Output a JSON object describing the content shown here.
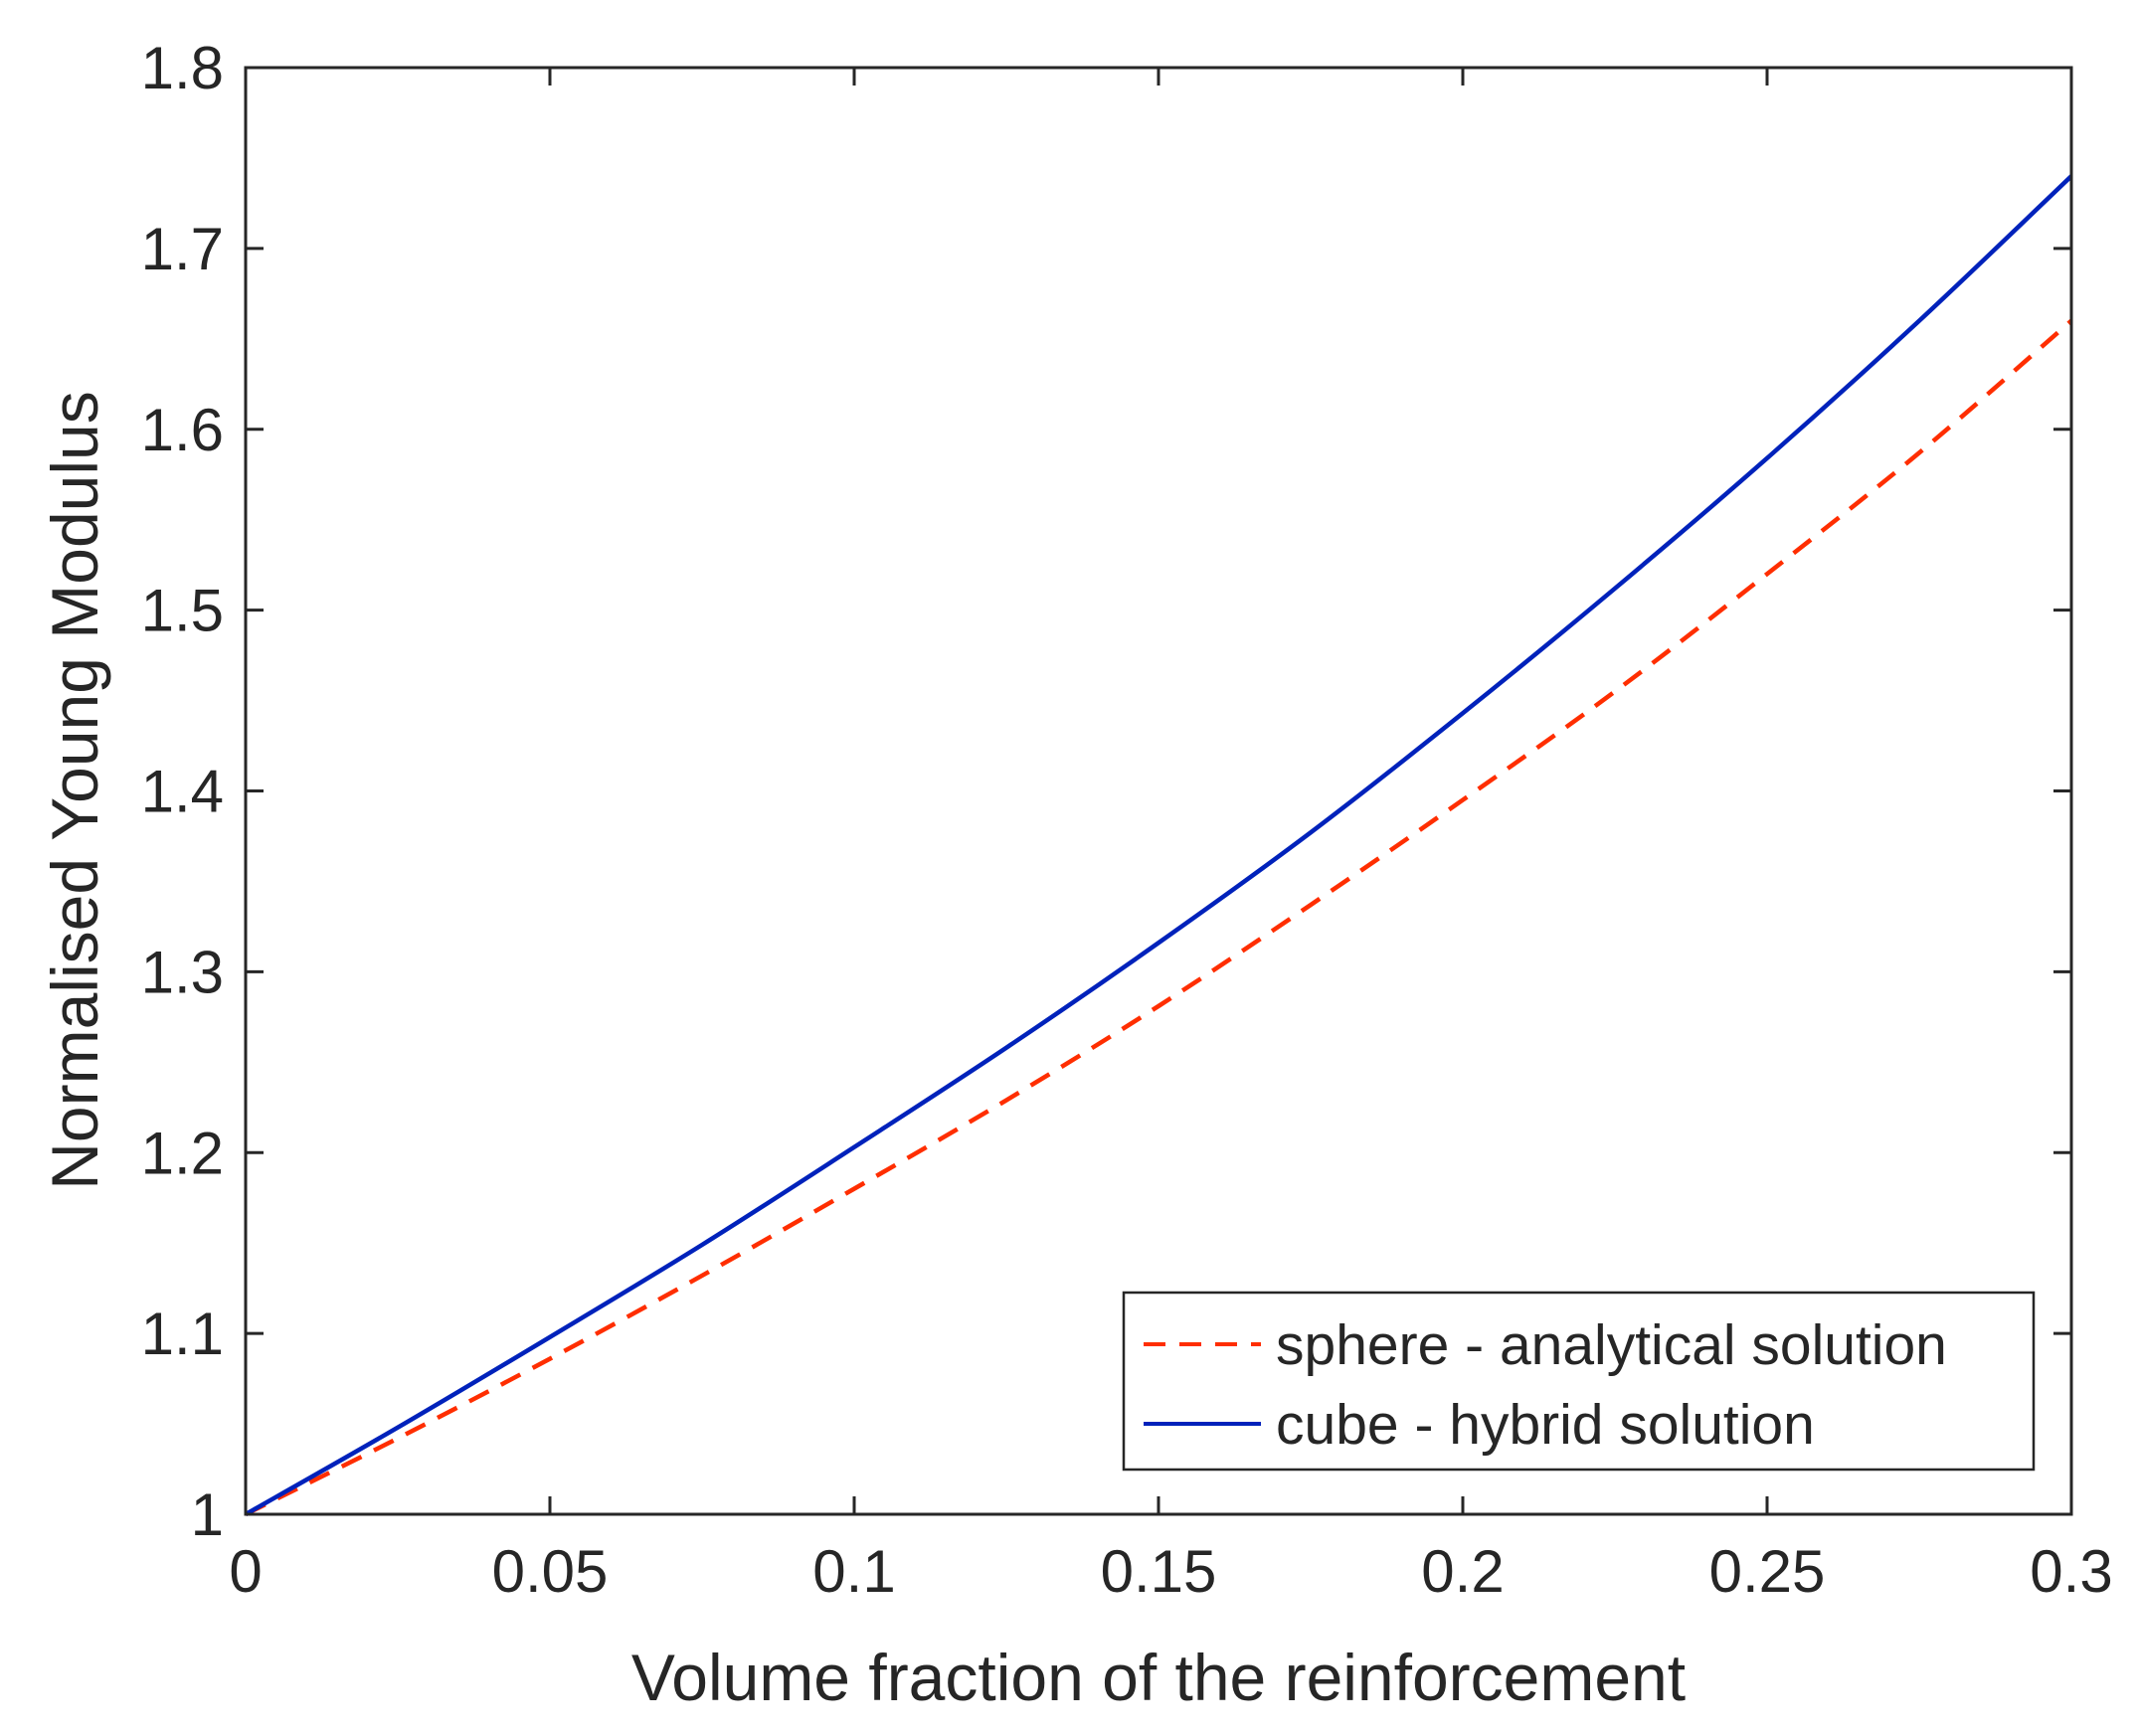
{
  "chart_data": {
    "type": "line",
    "title": "",
    "xlabel": "Volume fraction of the reinforcement",
    "ylabel": "Normalised Young Modulus",
    "xlim": [
      0,
      0.3
    ],
    "ylim": [
      1,
      1.8
    ],
    "xticks": [
      0,
      0.05,
      0.1,
      0.15,
      0.2,
      0.25,
      0.3
    ],
    "xtick_labels": [
      "0",
      "0.05",
      "0.1",
      "0.15",
      "0.2",
      "0.25",
      "0.3"
    ],
    "yticks": [
      1,
      1.1,
      1.2,
      1.3,
      1.4,
      1.5,
      1.6,
      1.7,
      1.8
    ],
    "ytick_labels": [
      "1",
      "1.1",
      "1.2",
      "1.3",
      "1.4",
      "1.5",
      "1.6",
      "1.7",
      "1.8"
    ],
    "grid": false,
    "legend_position": "bottom-right",
    "x": [
      0,
      0.025,
      0.05,
      0.075,
      0.1,
      0.125,
      0.15,
      0.175,
      0.2,
      0.225,
      0.25,
      0.275,
      0.3
    ],
    "series": [
      {
        "name": "sphere - analytical solution",
        "style": "dashed",
        "color": "#ff2e00",
        "values": [
          1.0,
          1.042,
          1.086,
          1.132,
          1.18,
          1.229,
          1.281,
          1.337,
          1.395,
          1.455,
          1.52,
          1.587,
          1.66
        ]
      },
      {
        "name": "cube - hybrid solution",
        "style": "solid",
        "color": "#0022bb",
        "values": [
          1.0,
          1.048,
          1.098,
          1.149,
          1.203,
          1.258,
          1.316,
          1.377,
          1.443,
          1.512,
          1.584,
          1.66,
          1.74
        ]
      }
    ]
  }
}
